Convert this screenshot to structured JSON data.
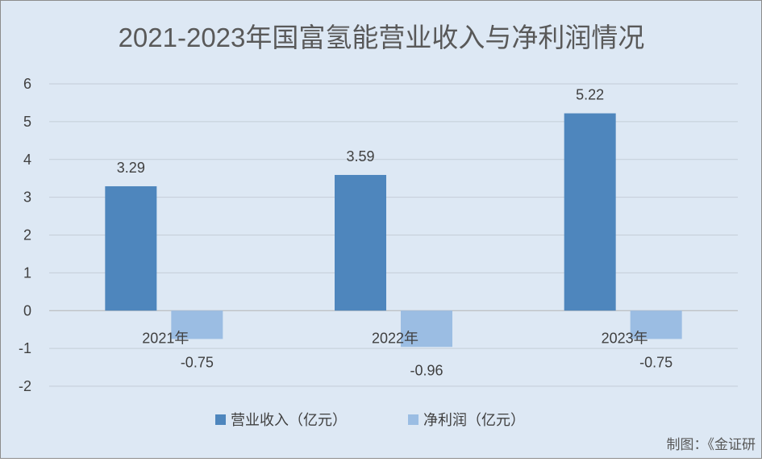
{
  "chart_data": {
    "type": "bar",
    "title": "2021-2023年国富氢能营业收入与净利润情况",
    "categories": [
      "2021年",
      "2022年",
      "2023年"
    ],
    "series": [
      {
        "name": "营业收入（亿元）",
        "values": [
          3.29,
          3.59,
          5.22
        ],
        "labels": [
          "3.29",
          "3.59",
          "5.22"
        ],
        "color": "#4e86bd"
      },
      {
        "name": "净利润（亿元）",
        "values": [
          -0.75,
          -0.96,
          -0.75
        ],
        "labels": [
          "-0.75",
          "-0.96",
          "-0.75"
        ],
        "color": "#9bbde3"
      }
    ],
    "yticks": [
      "-2",
      "-1",
      "0",
      "1",
      "2",
      "3",
      "4",
      "5",
      "6"
    ],
    "ylim": [
      -2,
      6
    ],
    "grid": true,
    "legend": "bottom",
    "xlabel": "",
    "ylabel": ""
  },
  "source": "制图：《金证研"
}
